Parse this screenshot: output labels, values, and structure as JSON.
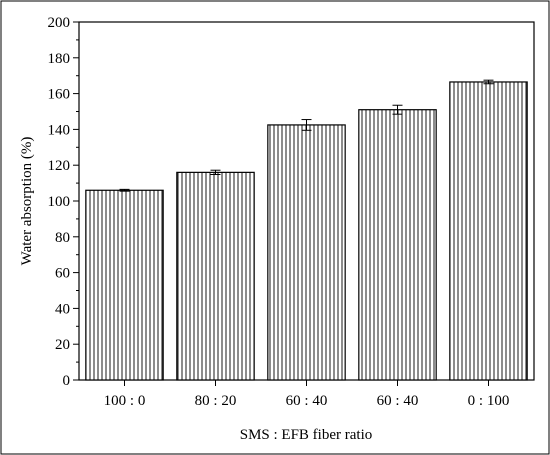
{
  "chart_data": {
    "type": "bar",
    "categories": [
      "100 : 0",
      "80 : 20",
      "60 : 40",
      "60 : 40",
      "0 : 100"
    ],
    "values": [
      106,
      116,
      142.5,
      151,
      166.5
    ],
    "error_bars": [
      0.5,
      1.2,
      3.0,
      2.5,
      1.0
    ],
    "title": "",
    "xlabel": "SMS : EFB fiber ratio",
    "ylabel": "Water absorption (%)",
    "ylim": [
      0,
      200
    ],
    "yticks": [
      0,
      20,
      40,
      60,
      80,
      100,
      120,
      140,
      160,
      180,
      200
    ],
    "grid": false,
    "bar_fill": "vertical-hatch",
    "colors": {
      "bar_stroke": "#000000",
      "hatch": "#000000",
      "background": "#ffffff",
      "frame": "#000000"
    }
  }
}
